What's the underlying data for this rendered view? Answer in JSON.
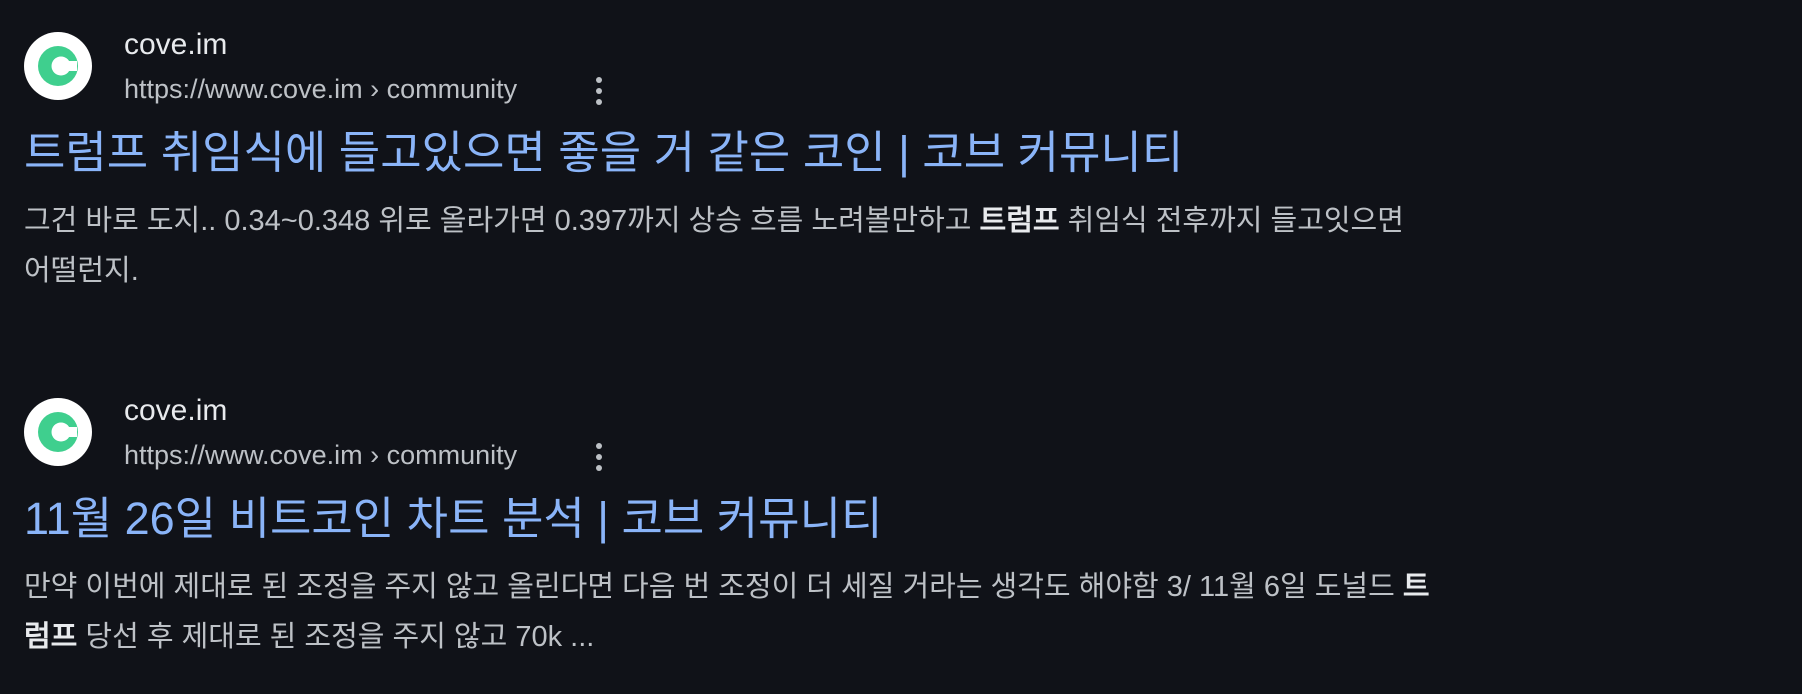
{
  "results": [
    {
      "site_name": "cove.im",
      "url": "https://www.cove.im › community",
      "title": "트럼프 취임식에 들고있으면 좋을 거 같은 코인 | 코브 커뮤니티",
      "snippet": {
        "before": "그건 바로 도지.. 0.34~0.348 위로 올라가면 0.397까지 상승 흐름 노려볼만하고 ",
        "bold": "트럼프",
        "after": " 취임식 전후까지 들고잇으면",
        "line2": "어떨런지."
      }
    },
    {
      "site_name": "cove.im",
      "url": "https://www.cove.im › community",
      "title": "11월 26일 비트코인 차트 분석 | 코브 커뮤니티",
      "snippet": {
        "before": "만약 이번에 제대로 된 조정을 주지 않고 올린다면 다음 번 조정이 더 세질 거라는 생각도 해야함 3/ 11월 6일 도널드 ",
        "bold": "트",
        "line2_bold": "럼프",
        "line2_after": " 당선 후 제대로 된 조정을 주지 않고 70k ..."
      }
    }
  ],
  "icons": {
    "favicon": "cove-logo-icon",
    "more": "more-vert-icon"
  },
  "colors": {
    "background": "#101218",
    "title_link": "#8ab4f8",
    "favicon_green": "#3fcf8e"
  }
}
